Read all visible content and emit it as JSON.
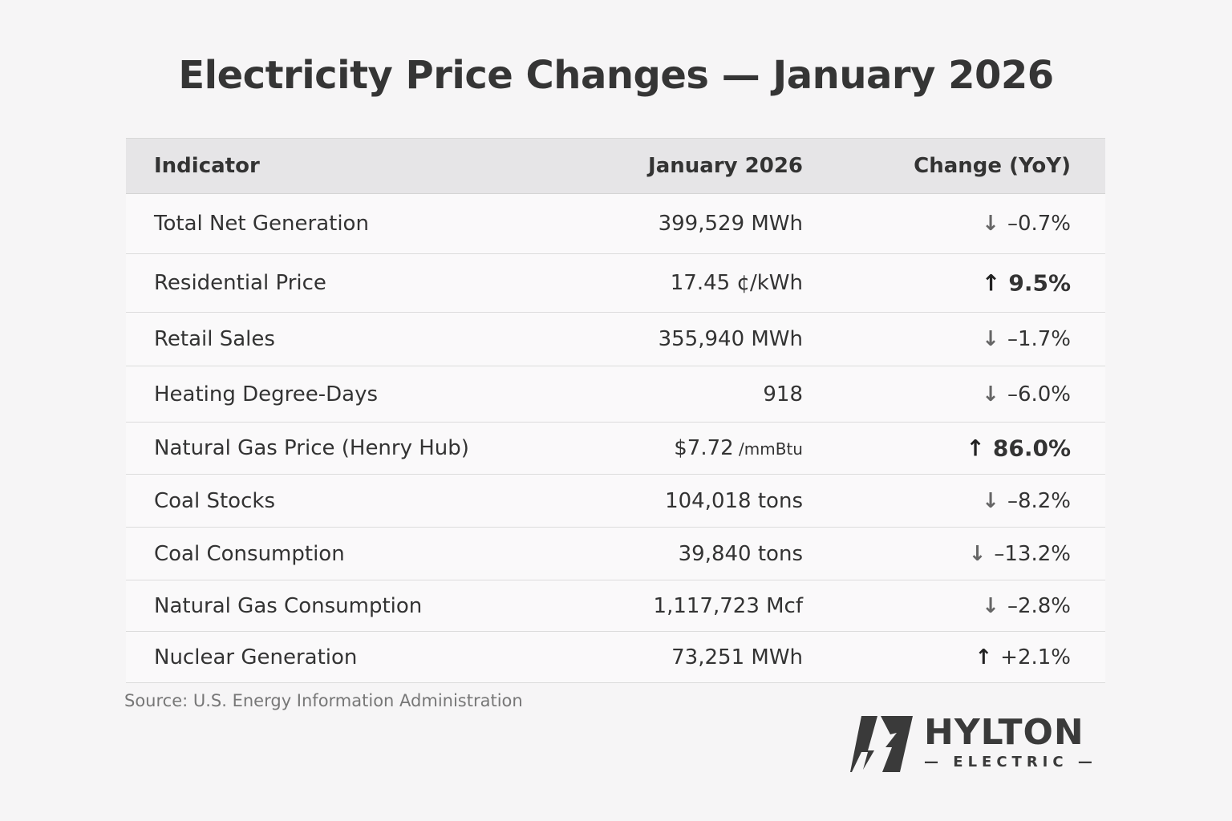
{
  "title": "Electricity Price Changes — January 2026",
  "table": {
    "headers": [
      "Indicator",
      "January 2026",
      "Change (YoY)"
    ],
    "rows": [
      {
        "indicator": "Total Net Generation",
        "value": "399,529 MWh",
        "unit": "",
        "change": "–0.7%",
        "direction": "down",
        "emphasis": false
      },
      {
        "indicator": "Residential Price",
        "value": "17.45 ¢/kWh",
        "unit": "",
        "change": "9.5%",
        "direction": "up",
        "emphasis": true
      },
      {
        "indicator": "Retail Sales",
        "value": "355,940 MWh",
        "unit": "",
        "change": "–1.7%",
        "direction": "down",
        "emphasis": false
      },
      {
        "indicator": "Heating Degree-Days",
        "value": "918",
        "unit": "",
        "change": "–6.0%",
        "direction": "down",
        "emphasis": false
      },
      {
        "indicator": "Natural Gas Price (Henry Hub)",
        "value": "$7.72",
        "unit": " /mmBtu",
        "change": "86.0%",
        "direction": "up",
        "emphasis": true
      },
      {
        "indicator": "Coal Stocks",
        "value": "104,018 tons",
        "unit": "",
        "change": "–8.2%",
        "direction": "down",
        "emphasis": false
      },
      {
        "indicator": "Coal Consumption",
        "value": "39,840 tons",
        "unit": "",
        "change": "–13.2%",
        "direction": "down",
        "emphasis": false
      },
      {
        "indicator": "Natural Gas Consumption",
        "value": "1,117,723 Mcf",
        "unit": "",
        "change": "–2.8%",
        "direction": "down",
        "emphasis": false
      },
      {
        "indicator": "Nuclear Generation",
        "value": "73,251 MWh",
        "unit": "",
        "change": "+2.1%",
        "direction": "up",
        "emphasis": false
      }
    ]
  },
  "source": "Source: U.S. Energy Information Administration",
  "logo": {
    "name": "HYLTON",
    "subtitle": "— ELECTRIC —"
  },
  "icons": {
    "up": "arrow-up-icon",
    "down": "arrow-down-icon"
  },
  "colors": {
    "background": "#f6f5f6",
    "header_bg": "#e6e5e7",
    "text": "#333333"
  }
}
